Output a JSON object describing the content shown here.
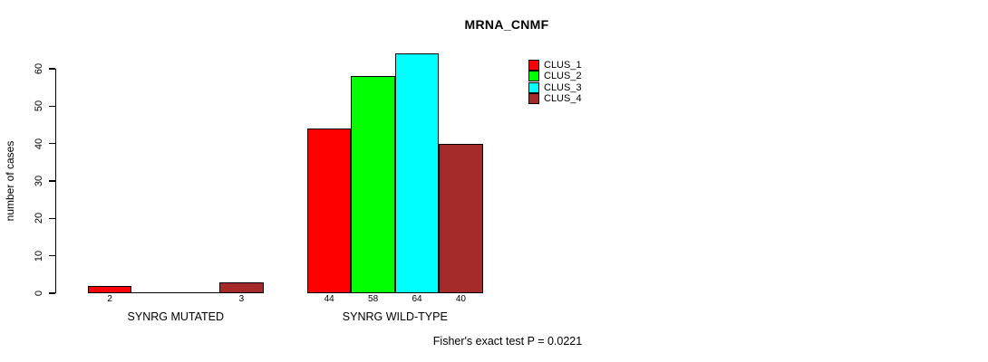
{
  "chart_data": {
    "type": "bar",
    "title": "MRNA_CNMF",
    "ylabel": "number of cases",
    "xlabel": "",
    "annotation": "Fisher's exact test P = 0.0221",
    "grid": false,
    "legend_position": "top-right",
    "yticks": [
      0,
      10,
      20,
      30,
      40,
      50,
      60
    ],
    "ylim": [
      0,
      64
    ],
    "categories": [
      "SYNRG MUTATED",
      "SYNRG WILD-TYPE"
    ],
    "series": [
      {
        "name": "CLUS_1",
        "color": "#ff0000",
        "values": [
          2,
          44
        ]
      },
      {
        "name": "CLUS_2",
        "color": "#00ff00",
        "values": [
          0,
          58
        ]
      },
      {
        "name": "CLUS_3",
        "color": "#00ffff",
        "values": [
          0,
          64
        ]
      },
      {
        "name": "CLUS_4",
        "color": "#a52a2a",
        "values": [
          3,
          40
        ]
      }
    ],
    "bar_value_labels": [
      [
        "2",
        "",
        "",
        "3"
      ],
      [
        "44",
        "58",
        "64",
        "40"
      ]
    ]
  }
}
